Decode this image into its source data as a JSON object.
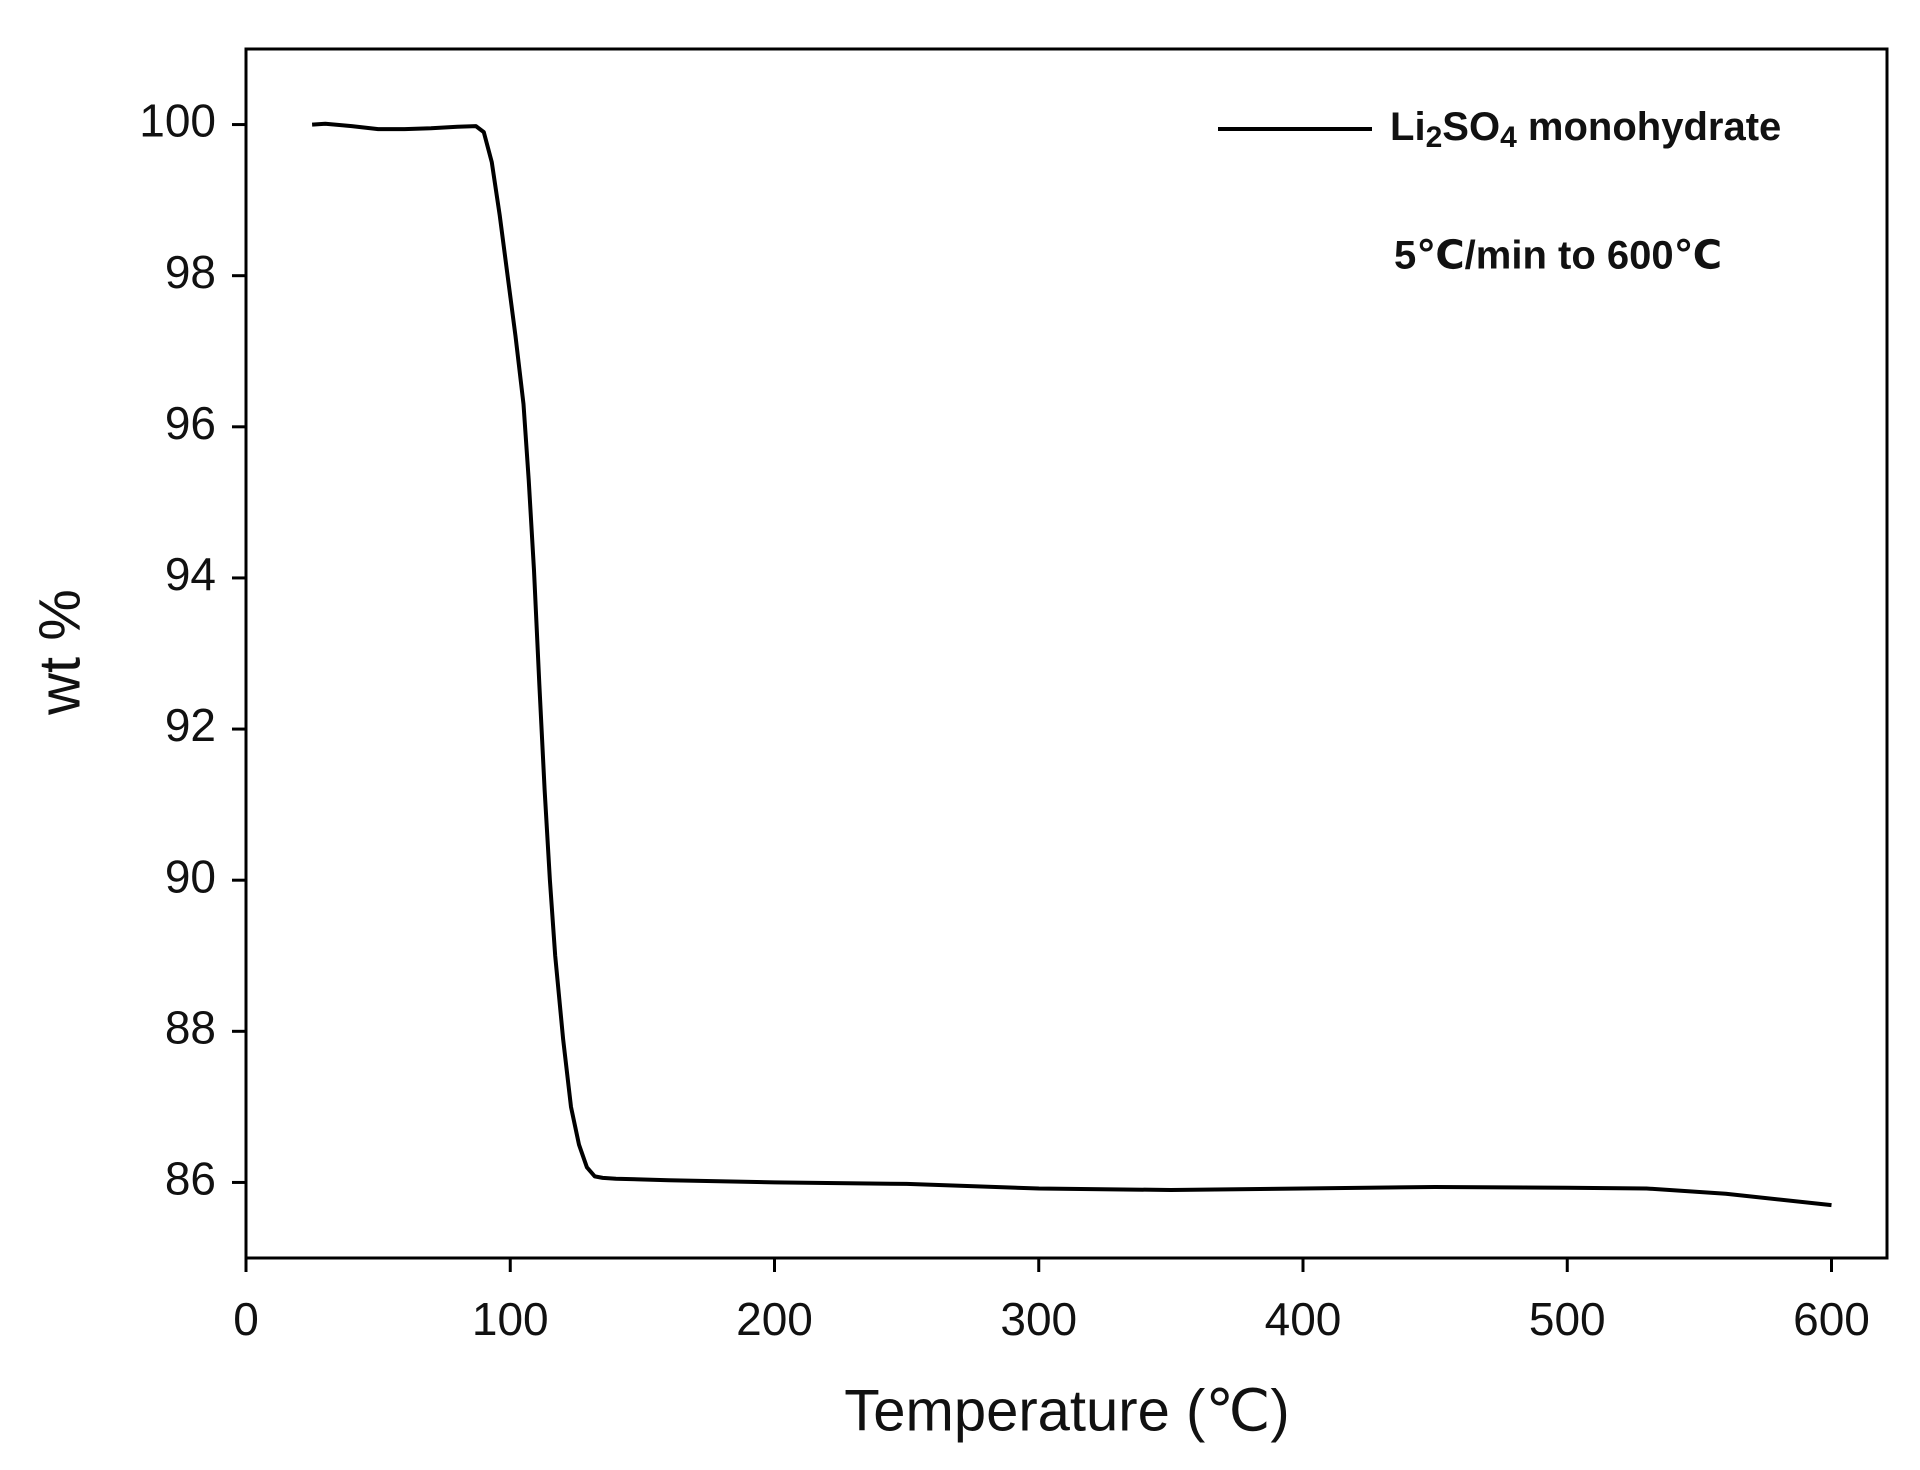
{
  "chart_data": {
    "type": "line",
    "xlabel": "Temperature (℃)",
    "ylabel": "wt %",
    "annotation": "5℃/min to 600℃",
    "x": [
      25,
      30,
      40,
      50,
      60,
      70,
      80,
      87,
      90,
      93,
      96,
      99,
      102,
      105,
      107,
      109,
      111,
      113,
      115,
      117,
      120,
      123,
      126,
      129,
      132,
      135,
      140,
      160,
      200,
      250,
      300,
      350,
      400,
      450,
      500,
      530,
      560,
      600
    ],
    "series": [
      {
        "name": "Li2SO4 monohydrate",
        "color": "#000000",
        "values": [
          100,
          100.01,
          99.98,
          99.94,
          99.94,
          99.95,
          99.97,
          99.98,
          99.9,
          99.5,
          98.8,
          98.0,
          97.2,
          96.3,
          95.3,
          94.1,
          92.6,
          91.2,
          90.0,
          89.0,
          87.9,
          87.0,
          86.5,
          86.2,
          86.08,
          86.06,
          86.05,
          86.03,
          86.0,
          85.98,
          85.92,
          85.9,
          85.92,
          85.94,
          85.93,
          85.92,
          85.85,
          85.7
        ]
      }
    ],
    "xlim": [
      0,
      621
    ],
    "ylim": [
      85,
      101
    ],
    "xticks": [
      0,
      100,
      200,
      300,
      400,
      500,
      600
    ],
    "yticks": [
      86,
      88,
      90,
      92,
      94,
      96,
      98,
      100
    ],
    "grid": false
  }
}
